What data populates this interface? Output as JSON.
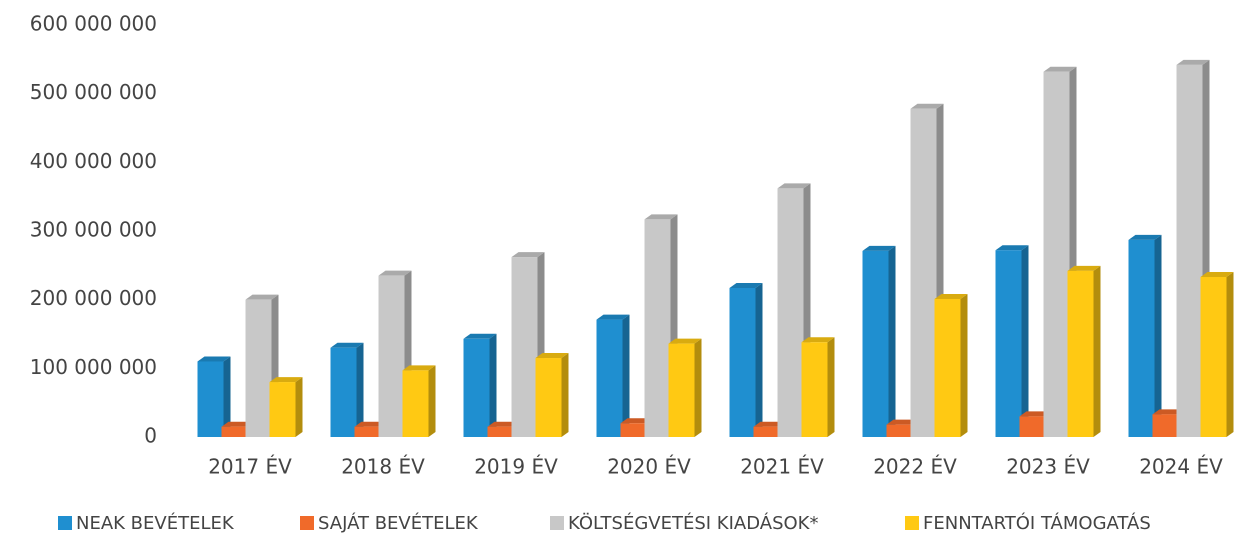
{
  "chart_data": {
    "type": "bar3d",
    "categories": [
      "2017 ÉV",
      "2018 ÉV",
      "2019 ÉV",
      "2020 ÉV",
      "2021 ÉV",
      "2022 ÉV",
      "2023 ÉV",
      "2024 ÉV"
    ],
    "series": [
      {
        "name": "NEAK BEVÉTELEK",
        "color": "#1f8fd0",
        "values": [
          110000000,
          130000000,
          143000000,
          171000000,
          217000000,
          271000000,
          272000000,
          287000000
        ]
      },
      {
        "name": "SAJÁT BEVÉTELEK",
        "color": "#f06a2a",
        "values": [
          15000000,
          15000000,
          15000000,
          20000000,
          15000000,
          18000000,
          30000000,
          33000000
        ]
      },
      {
        "name": "KÖLTSÉGVETÉSI KIADÁSOK*",
        "color": "#c8c8c8",
        "values": [
          200000000,
          235000000,
          262000000,
          317000000,
          362000000,
          478000000,
          532000000,
          542000000
        ]
      },
      {
        "name": "FENNTARTÓI TÁMOGATÁS",
        "color": "#ffc913",
        "values": [
          80000000,
          97000000,
          115000000,
          136000000,
          138000000,
          201000000,
          242000000,
          233000000
        ]
      }
    ],
    "ylim": [
      0,
      600000000
    ],
    "yticks": [
      0,
      {
        "value": 100000000,
        "label": "100 000 000"
      },
      {
        "value": 200000000,
        "label": "200 000 000"
      },
      {
        "value": 300000000,
        "label": "300 000 000"
      },
      {
        "value": 400000000,
        "label": "400 000 000"
      },
      {
        "value": 500000000,
        "label": "500 000 000"
      },
      {
        "value": 600000000,
        "label": "600 000 000"
      }
    ],
    "grid": false,
    "legend": "bottom"
  }
}
